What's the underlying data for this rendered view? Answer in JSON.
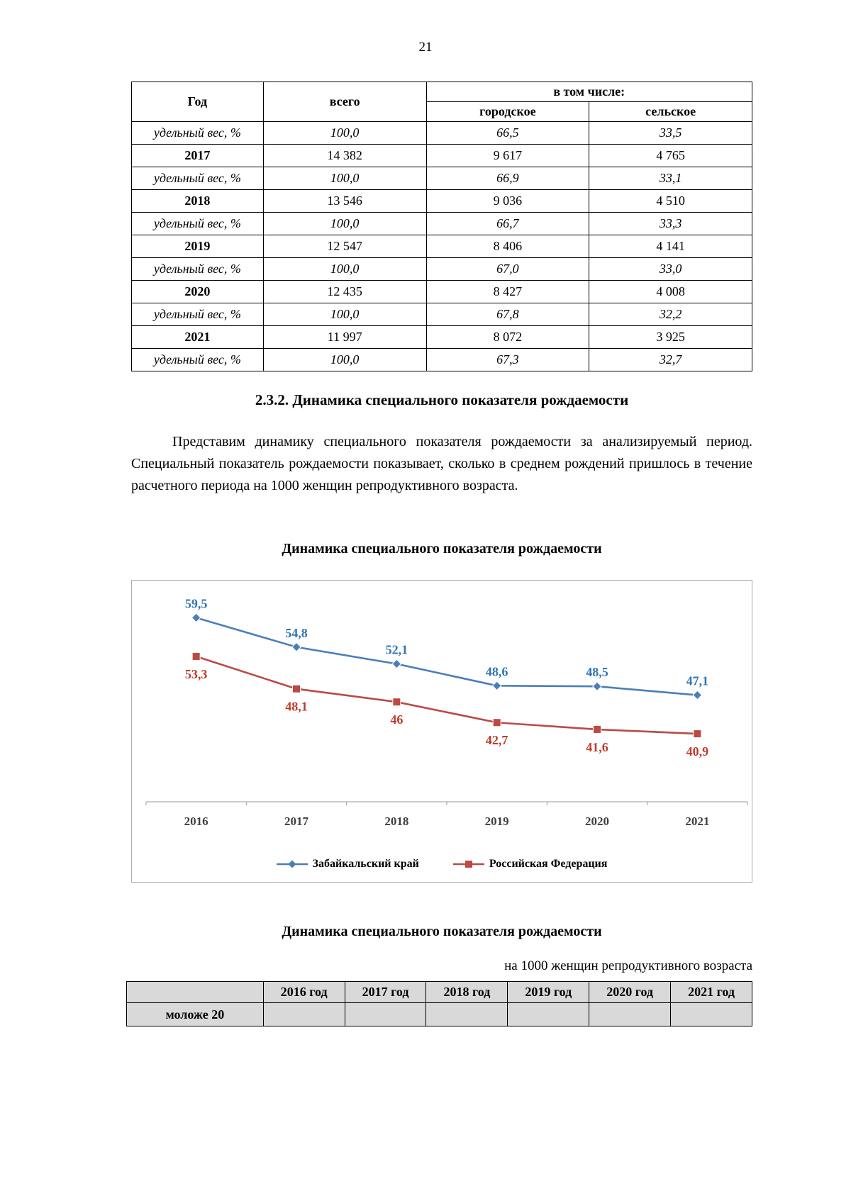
{
  "page": {
    "number": "21"
  },
  "table1": {
    "header": {
      "col_god": "Год",
      "col_vsego": "всего",
      "col_vtomchisle": "в том числе:",
      "col_gorodskoe": "городское",
      "col_selskoe": "сельское"
    },
    "rows": [
      {
        "label": "удельный вес, %",
        "total": "100,0",
        "urban": "66,5",
        "rural": "33,5",
        "style": "share"
      },
      {
        "label": "2017",
        "total": "14 382",
        "urban": "9 617",
        "rural": "4 765",
        "style": "year"
      },
      {
        "label": "удельный вес, %",
        "total": "100,0",
        "urban": "66,9",
        "rural": "33,1",
        "style": "share"
      },
      {
        "label": "2018",
        "total": "13 546",
        "urban": "9 036",
        "rural": "4 510",
        "style": "year"
      },
      {
        "label": "удельный вес, %",
        "total": "100,0",
        "urban": "66,7",
        "rural": "33,3",
        "style": "share"
      },
      {
        "label": "2019",
        "total": "12 547",
        "urban": "8 406",
        "rural": "4 141",
        "style": "year"
      },
      {
        "label": "удельный вес, %",
        "total": "100,0",
        "urban": "67,0",
        "rural": "33,0",
        "style": "share"
      },
      {
        "label": "2020",
        "total": "12 435",
        "urban": "8 427",
        "rural": "4 008",
        "style": "year"
      },
      {
        "label": "удельный вес, %",
        "total": "100,0",
        "urban": "67,8",
        "rural": "32,2",
        "style": "share"
      },
      {
        "label": "2021",
        "total": "11 997",
        "urban": "8 072",
        "rural": "3 925",
        "style": "year"
      },
      {
        "label": "удельный вес, %",
        "total": "100,0",
        "urban": "67,3",
        "rural": "32,7",
        "style": "share"
      }
    ]
  },
  "section": {
    "heading": "2.3.2. Динамика специального показателя рождаемости",
    "paragraph": "Представим динамику специального показателя рождаемости за анализируемый период. Специальный показатель рождаемости показывает, сколько в среднем рождений пришлось в течение расчетного периода на 1000 женщин репродуктивного возраста."
  },
  "chart_section": {
    "title": "Динамика специального показателя рождаемости"
  },
  "chart_data": {
    "type": "line",
    "title": "Динамика специального показателя рождаемости",
    "categories": [
      "2016",
      "2017",
      "2018",
      "2019",
      "2020",
      "2021"
    ],
    "series": [
      {
        "name": "Забайкальский край",
        "values": [
          59.5,
          54.8,
          52.1,
          48.6,
          48.5,
          47.1
        ],
        "labels": [
          "59,5",
          "54,8",
          "52,1",
          "48,6",
          "48,5",
          "47,1"
        ],
        "color": "#4a7ebb",
        "label_color": "#2e74b5",
        "marker": "diamond"
      },
      {
        "name": "Российская Федерация",
        "values": [
          53.3,
          48.1,
          46,
          42.7,
          41.6,
          40.9
        ],
        "labels": [
          "53,3",
          "48,1",
          "46",
          "42,7",
          "41,6",
          "40,9"
        ],
        "color": "#bb4a44",
        "label_color": "#c0392b",
        "marker": "square"
      }
    ],
    "xlabel": "",
    "ylabel": "",
    "ylim": [
      30,
      65
    ],
    "grid": false,
    "legend_position": "bottom"
  },
  "table2": {
    "title": "Динамика специального показателя рождаемости",
    "note": "на 1000 женщин репродуктивного возраста",
    "headers": [
      "",
      "2016 год",
      "2017 год",
      "2018 год",
      "2019 год",
      "2020 год",
      "2021 год"
    ],
    "rows": [
      {
        "label": "моложе 20",
        "values": [
          "",
          "",
          "",
          "",
          "",
          ""
        ]
      }
    ]
  }
}
